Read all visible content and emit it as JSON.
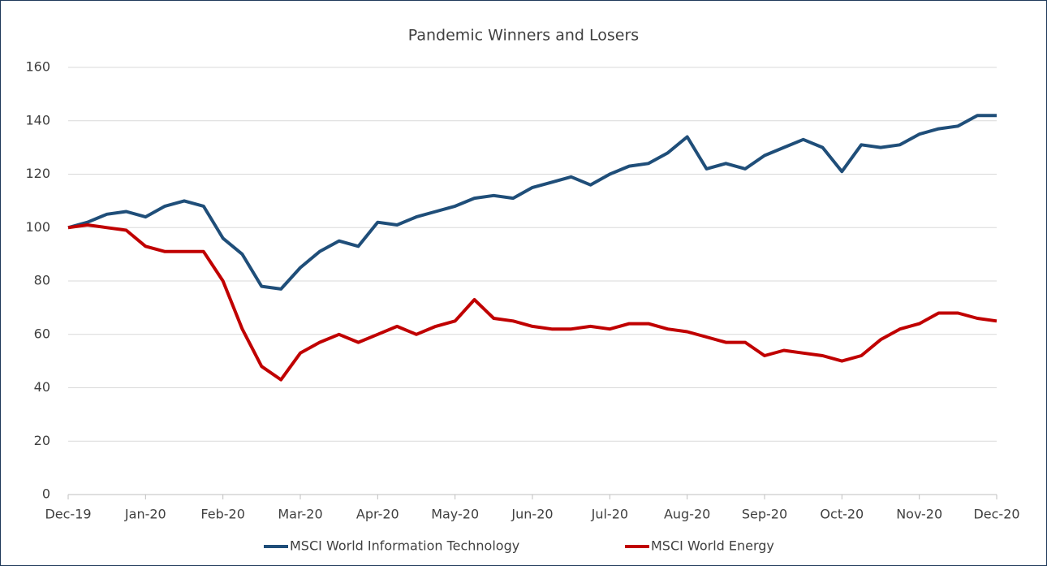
{
  "chart_data": {
    "type": "line",
    "title": "Pandemic Winners and Losers",
    "categories": [
      "Dec-19",
      null,
      null,
      null,
      "Jan-20",
      null,
      null,
      null,
      "Feb-20",
      null,
      null,
      null,
      "Mar-20",
      null,
      null,
      null,
      "Apr-20",
      null,
      null,
      null,
      "May-20",
      null,
      null,
      null,
      "Jun-20",
      null,
      null,
      null,
      "Jul-20",
      null,
      null,
      null,
      "Aug-20",
      null,
      null,
      null,
      "Sep-20",
      null,
      null,
      null,
      "Oct-20",
      null,
      null,
      null,
      "Nov-20",
      null,
      null,
      null,
      "Dec-20"
    ],
    "series": [
      {
        "name": "MSCI World Information Technology",
        "color": "#1f4e79",
        "values": [
          100,
          102,
          105,
          106,
          104,
          108,
          110,
          108,
          96,
          90,
          78,
          77,
          85,
          91,
          95,
          93,
          102,
          101,
          104,
          106,
          108,
          111,
          112,
          111,
          115,
          117,
          119,
          116,
          120,
          123,
          124,
          128,
          134,
          122,
          124,
          122,
          127,
          130,
          133,
          130,
          121,
          131,
          130,
          131,
          135,
          137,
          138,
          142,
          142
        ]
      },
      {
        "name": "MSCI World Energy",
        "color": "#c00000",
        "values": [
          100,
          101,
          100,
          99,
          93,
          91,
          91,
          91,
          80,
          62,
          48,
          43,
          53,
          57,
          60,
          57,
          60,
          63,
          60,
          63,
          65,
          73,
          66,
          65,
          63,
          62,
          62,
          63,
          62,
          64,
          64,
          62,
          61,
          59,
          57,
          57,
          52,
          54,
          53,
          52,
          50,
          52,
          58,
          62,
          64,
          68,
          68,
          66,
          65
        ]
      }
    ],
    "ylim": [
      0,
      160
    ],
    "yticks": [
      0,
      20,
      40,
      60,
      80,
      100,
      120,
      140,
      160
    ],
    "grid": true,
    "legend": "bottom"
  }
}
